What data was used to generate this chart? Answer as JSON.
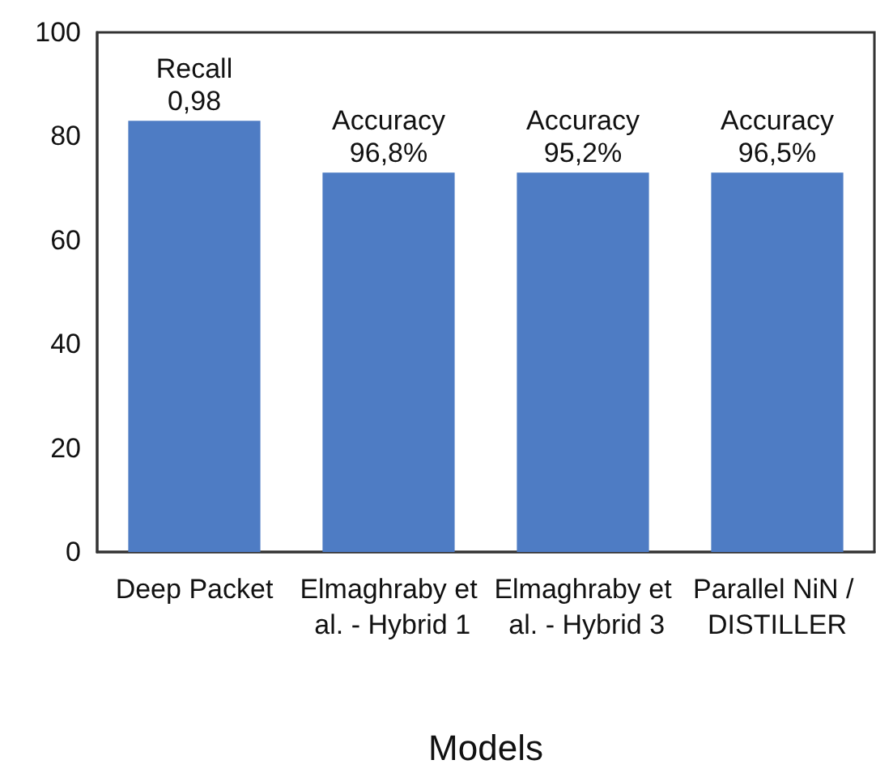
{
  "chart_data": {
    "type": "bar",
    "xlabel": "Models",
    "categories": [
      "Deep Packet",
      "Elmaghraby et al. - Hybrid 1",
      "Elmaghraby et al. - Hybrid 3",
      "Parallel NiN / DISTILLER"
    ],
    "values": [
      83,
      73,
      73,
      73
    ],
    "color": "#4e7cc4",
    "ylim": [
      0,
      100
    ],
    "yticks": [
      0,
      20,
      40,
      60,
      80,
      100
    ],
    "grid": false,
    "annotations": [
      {
        "text": "Recall 0,98",
        "x": "Deep Packet",
        "y": 83
      },
      {
        "text": "Accuracy 96,8%",
        "x": "Elmaghraby et al. - Hybrid 1",
        "y": 73
      },
      {
        "text": "Accuracy 95,2%",
        "x": "Elmaghraby et al. - Hybrid 3",
        "y": 73
      },
      {
        "text": "Accuracy 96,5%",
        "x": "Parallel NiN / DISTILLER",
        "y": 73
      }
    ]
  }
}
